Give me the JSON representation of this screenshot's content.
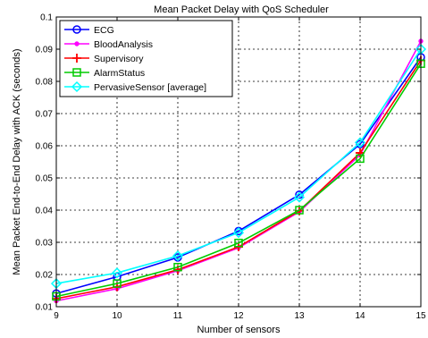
{
  "chart_data": {
    "type": "line",
    "title": "Mean Packet Delay with QoS Scheduler",
    "xlabel": "Number of sensors",
    "ylabel": "Mean Packet End-to-End Delay with ACK (seconds)",
    "xlim": [
      9,
      15
    ],
    "ylim": [
      0.01,
      0.1
    ],
    "xticks": [
      "9",
      "10",
      "11",
      "12",
      "13",
      "14",
      "15"
    ],
    "yticks": [
      "0.01",
      "0.02",
      "0.03",
      "0.04",
      "0.05",
      "0.06",
      "0.07",
      "0.08",
      "0.09",
      "0.1"
    ],
    "grid": true,
    "legend_position": "top-left",
    "x": [
      9,
      10,
      11,
      12,
      13,
      14,
      15
    ],
    "series": [
      {
        "name": "ECG",
        "color": "#0000ff",
        "marker": "circle",
        "values": [
          0.0141,
          0.0193,
          0.0253,
          0.0335,
          0.0448,
          0.0605,
          0.0875
        ]
      },
      {
        "name": "BloodAnalysis",
        "color": "#ff00ff",
        "marker": "dot",
        "values": [
          0.0118,
          0.0156,
          0.0212,
          0.0283,
          0.0395,
          0.0572,
          0.0925
        ]
      },
      {
        "name": "Supervisory",
        "color": "#ff0000",
        "marker": "plus",
        "values": [
          0.0125,
          0.0162,
          0.0215,
          0.0286,
          0.0398,
          0.0578,
          0.0865
        ]
      },
      {
        "name": "AlarmStatus",
        "color": "#00cc00",
        "marker": "square",
        "values": [
          0.0132,
          0.0172,
          0.0223,
          0.0298,
          0.04,
          0.056,
          0.0855
        ]
      },
      {
        "name": "PervasiveSensor [average]",
        "color": "#00ffff",
        "marker": "diamond",
        "values": [
          0.0172,
          0.0205,
          0.0258,
          0.033,
          0.044,
          0.061,
          0.09
        ]
      }
    ]
  }
}
